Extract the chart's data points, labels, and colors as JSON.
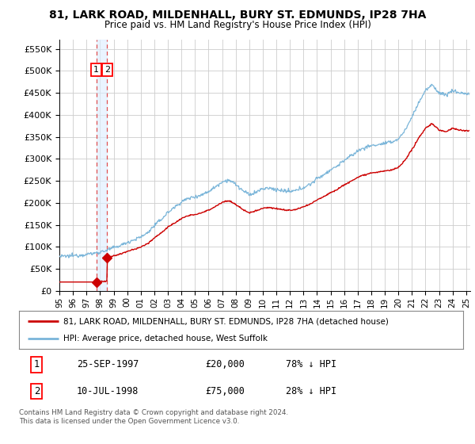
{
  "title": "81, LARK ROAD, MILDENHALL, BURY ST. EDMUNDS, IP28 7HA",
  "subtitle": "Price paid vs. HM Land Registry's House Price Index (HPI)",
  "purchase_annotations": [
    {
      "num": "1",
      "date": "25-SEP-1997",
      "price": "£20,000",
      "pct": "78% ↓ HPI"
    },
    {
      "num": "2",
      "date": "10-JUL-1998",
      "price": "£75,000",
      "pct": "28% ↓ HPI"
    }
  ],
  "legend_entries": [
    "81, LARK ROAD, MILDENHALL, BURY ST. EDMUNDS, IP28 7HA (detached house)",
    "HPI: Average price, detached house, West Suffolk"
  ],
  "footer": "Contains HM Land Registry data © Crown copyright and database right 2024.\nThis data is licensed under the Open Government Licence v3.0.",
  "hpi_color": "#7ab5d9",
  "price_color": "#cc0000",
  "dashed_color": "#e05050",
  "bg_color": "#ffffff",
  "grid_color": "#cccccc",
  "band_color": "#ddeeff",
  "p1_date": 1997.73,
  "p2_date": 1998.53,
  "p1_price": 20000,
  "p2_price": 75000,
  "ylim": [
    0,
    570000
  ],
  "yticks": [
    0,
    50000,
    100000,
    150000,
    200000,
    250000,
    300000,
    350000,
    400000,
    450000,
    500000,
    550000
  ],
  "xlim_start": 1995.0,
  "xlim_end": 2025.3,
  "xtick_years": [
    1995,
    1996,
    1997,
    1998,
    1999,
    2000,
    2001,
    2002,
    2003,
    2004,
    2005,
    2006,
    2007,
    2008,
    2009,
    2010,
    2011,
    2012,
    2013,
    2014,
    2015,
    2016,
    2017,
    2018,
    2019,
    2020,
    2021,
    2022,
    2023,
    2024,
    2025
  ]
}
